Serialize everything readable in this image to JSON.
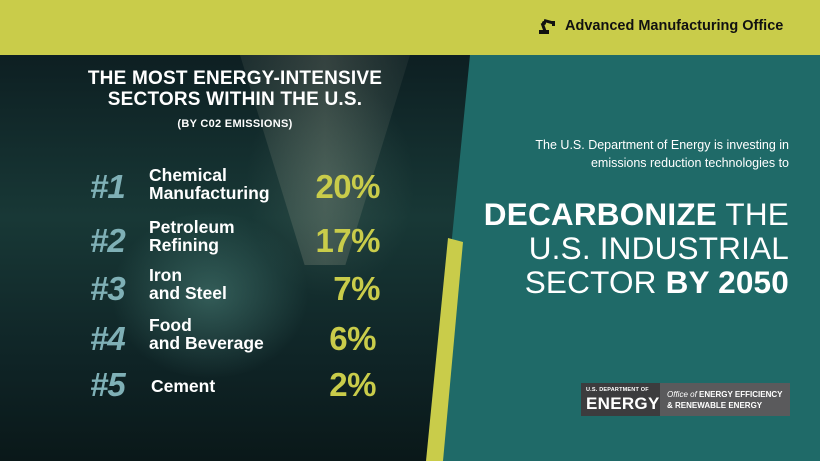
{
  "header": {
    "office_title": "Advanced Manufacturing Office",
    "icon": "robot-arm-icon"
  },
  "left": {
    "title_line1": "THE MOST ENERGY-INTENSIVE",
    "title_line2": "SECTORS WITHIN THE U.S.",
    "subtitle": "(BY C02 EMISSIONS)",
    "sectors": [
      {
        "rank": "#1",
        "line1": "Chemical",
        "line2": "Manufacturing",
        "percent": "20%"
      },
      {
        "rank": "#2",
        "line1": "Petroleum",
        "line2": "Refining",
        "percent": "17%"
      },
      {
        "rank": "#3",
        "line1": "Iron",
        "line2": "and Steel",
        "percent": "7%"
      },
      {
        "rank": "#4",
        "line1": "Food",
        "line2": "and Beverage",
        "percent": "6%"
      },
      {
        "rank": "#5",
        "line1": "Cement",
        "line2": "",
        "percent": "2%"
      }
    ]
  },
  "right": {
    "intro_line1": "The U.S. Department of Energy is investing in",
    "intro_line2": "emissions reduction technologies to",
    "headline": {
      "l1_bold": "DECARBONIZE",
      "l1_light": "THE",
      "l2_light": "U.S. INDUSTRIAL",
      "l3_light": "SECTOR",
      "l3_bold": "BY 2050"
    }
  },
  "logo": {
    "doe_small": "U.S. DEPARTMENT OF",
    "doe_big": "ENERGY",
    "office_of": "Office of",
    "eere_line1": "ENERGY EFFICIENCY",
    "eere_line2": "& RENEWABLE ENERGY"
  },
  "colors": {
    "accent_yellow": "#c9cc4a",
    "teal": "#1f6a68",
    "rank_blue": "#7fb0b6"
  }
}
